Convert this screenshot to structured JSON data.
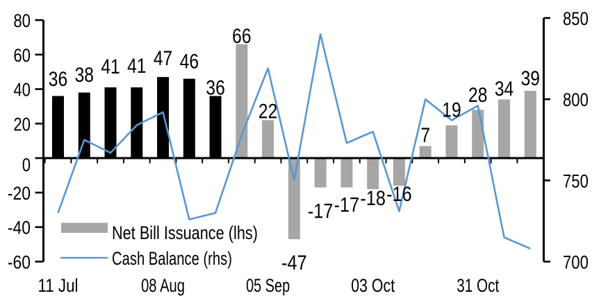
{
  "chart_data": {
    "type": "combo_bar_line",
    "x_weekly_categories_count": 19,
    "bars": {
      "name": "Net Bill Issuance (lhs)",
      "axis": "left",
      "values": [
        36,
        38,
        41,
        41,
        47,
        46,
        36,
        66,
        22,
        -47,
        -17,
        -17,
        -18,
        -16,
        7,
        19,
        28,
        34,
        39
      ],
      "labels": [
        "36",
        "38",
        "41",
        "41",
        "47",
        "46",
        "36",
        "66",
        "22",
        "-47",
        "-17",
        "-17",
        "-18",
        "-16",
        "7",
        "19",
        "28",
        "34",
        "39"
      ],
      "black_count": 7
    },
    "line": {
      "name": "Cash Balance (rhs)",
      "axis": "right",
      "values": [
        730,
        775,
        767,
        784,
        792,
        726,
        730,
        778,
        819,
        750,
        840,
        773,
        780,
        731,
        800,
        787,
        796,
        715,
        708
      ]
    },
    "left_axis": {
      "ticks": [
        80,
        60,
        40,
        20,
        0,
        -20,
        -40,
        -60
      ],
      "range": [
        -60,
        80
      ]
    },
    "right_axis": {
      "ticks": [
        850,
        800,
        750,
        700
      ],
      "range": [
        700,
        850
      ]
    },
    "x_axis": {
      "labels": [
        {
          "text": "11 Jul",
          "index": 0
        },
        {
          "text": "08 Aug",
          "index": 4
        },
        {
          "text": "05 Sep",
          "index": 8
        },
        {
          "text": "03 Oct",
          "index": 12
        },
        {
          "text": "31 Oct",
          "index": 16
        }
      ]
    },
    "legend": [
      {
        "label": "Net Bill Issuance (lhs)",
        "swatch": "bar"
      },
      {
        "label": "Cash Balance (rhs)",
        "swatch": "line"
      }
    ],
    "colors": {
      "bar_past": "#000000",
      "bar_recent": "#A6A6A6",
      "line": "#5A96D2",
      "axis": "#000000",
      "text": "#000000",
      "background": "#FFFFFF"
    },
    "grid": "off",
    "legend_position": "inside-bottom-left"
  }
}
